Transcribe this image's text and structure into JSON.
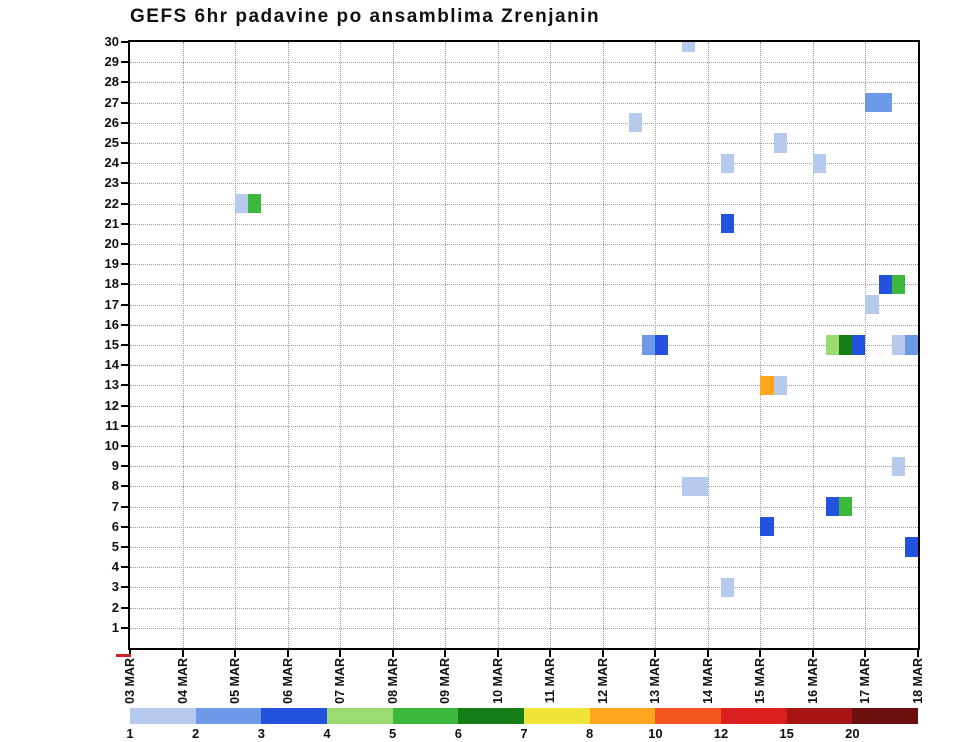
{
  "chart_data": {
    "type": "heatmap",
    "title": "GEFS 6hr padavine po ansamblima Zrenjanin",
    "subtitle": "",
    "x_dates": [
      "03 MAR",
      "04 MAR",
      "05 MAR",
      "06 MAR",
      "07 MAR",
      "08 MAR",
      "09 MAR",
      "10 MAR",
      "11 MAR",
      "12 MAR",
      "13 MAR",
      "14 MAR",
      "15 MAR",
      "16 MAR",
      "17 MAR",
      "18 MAR"
    ],
    "slots_per_day": 4,
    "y_members": [
      1,
      2,
      3,
      4,
      5,
      6,
      7,
      8,
      9,
      10,
      11,
      12,
      13,
      14,
      15,
      16,
      17,
      18,
      19,
      20,
      21,
      22,
      23,
      24,
      25,
      26,
      27,
      28,
      29,
      30
    ],
    "grid": "dotted",
    "legend": {
      "position": "bottom",
      "thresholds": [
        1,
        2,
        3,
        4,
        5,
        6,
        7,
        8,
        10,
        12,
        15,
        20
      ],
      "labels": [
        "1",
        "2",
        "3",
        "4",
        "5",
        "6",
        "7",
        "8",
        "10",
        "12",
        "15",
        "20"
      ],
      "colors": [
        "#b6caee",
        "#6d9ae8",
        "#2353de",
        "#9bdb70",
        "#3cb83c",
        "#157d15",
        "#f0e43a",
        "#ffa51e",
        "#f4551e",
        "#dc1f1f",
        "#a61414",
        "#6b0f0f"
      ]
    },
    "cells": [
      {
        "date": "13 MAR",
        "slot": 2,
        "member": 30,
        "value": 1
      },
      {
        "date": "12 MAR",
        "slot": 2,
        "member": 26,
        "value": 1
      },
      {
        "date": "17 MAR",
        "slot": 0,
        "member": 27,
        "value": 2
      },
      {
        "date": "17 MAR",
        "slot": 1,
        "member": 27,
        "value": 2
      },
      {
        "date": "15 MAR",
        "slot": 1,
        "member": 25,
        "value": 1
      },
      {
        "date": "14 MAR",
        "slot": 1,
        "member": 24,
        "value": 1
      },
      {
        "date": "16 MAR",
        "slot": 0,
        "member": 24,
        "value": 1
      },
      {
        "date": "05 MAR",
        "slot": 0,
        "member": 22,
        "value": 1
      },
      {
        "date": "05 MAR",
        "slot": 1,
        "member": 22,
        "value": 5
      },
      {
        "date": "14 MAR",
        "slot": 1,
        "member": 21,
        "value": 3
      },
      {
        "date": "17 MAR",
        "slot": 1,
        "member": 18,
        "value": 3
      },
      {
        "date": "17 MAR",
        "slot": 2,
        "member": 18,
        "value": 5
      },
      {
        "date": "17 MAR",
        "slot": 0,
        "member": 17,
        "value": 1
      },
      {
        "date": "12 MAR",
        "slot": 3,
        "member": 15,
        "value": 2
      },
      {
        "date": "13 MAR",
        "slot": 0,
        "member": 15,
        "value": 3
      },
      {
        "date": "16 MAR",
        "slot": 1,
        "member": 15,
        "value": 4
      },
      {
        "date": "16 MAR",
        "slot": 2,
        "member": 15,
        "value": 6
      },
      {
        "date": "16 MAR",
        "slot": 3,
        "member": 15,
        "value": 3
      },
      {
        "date": "17 MAR",
        "slot": 2,
        "member": 15,
        "value": 1
      },
      {
        "date": "17 MAR",
        "slot": 3,
        "member": 15,
        "value": 2
      },
      {
        "date": "15 MAR",
        "slot": 0,
        "member": 13,
        "value": 8
      },
      {
        "date": "15 MAR",
        "slot": 1,
        "member": 13,
        "value": 1
      },
      {
        "date": "17 MAR",
        "slot": 2,
        "member": 9,
        "value": 1
      },
      {
        "date": "13 MAR",
        "slot": 2,
        "member": 8,
        "value": 1
      },
      {
        "date": "13 MAR",
        "slot": 3,
        "member": 8,
        "value": 1
      },
      {
        "date": "16 MAR",
        "slot": 1,
        "member": 7,
        "value": 3
      },
      {
        "date": "16 MAR",
        "slot": 2,
        "member": 7,
        "value": 5
      },
      {
        "date": "15 MAR",
        "slot": 0,
        "member": 6,
        "value": 3
      },
      {
        "date": "17 MAR",
        "slot": 3,
        "member": 5,
        "value": 3
      },
      {
        "date": "14 MAR",
        "slot": 1,
        "member": 3,
        "value": 1
      }
    ]
  }
}
